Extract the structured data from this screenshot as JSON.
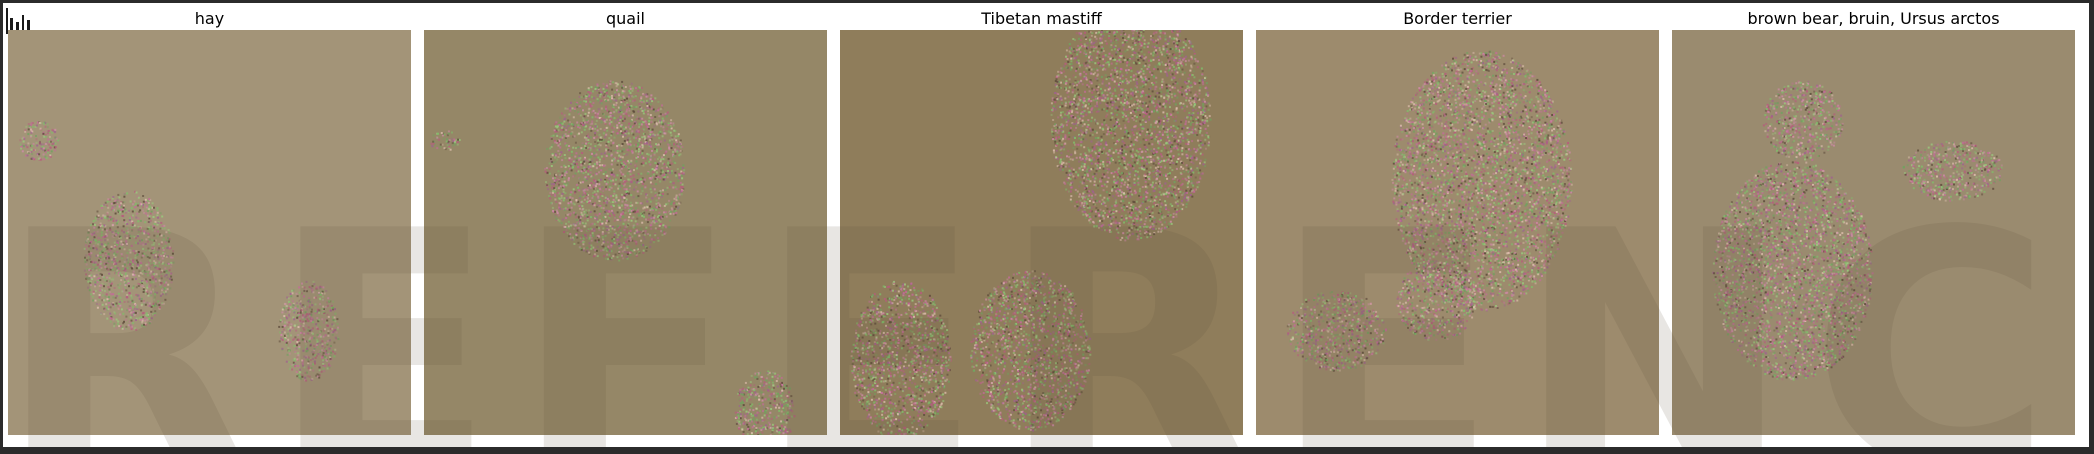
{
  "toolbar": {
    "icon": "bar-chart-icon"
  },
  "panels": [
    {
      "title": "hay",
      "bg": "#a39478"
    },
    {
      "title": "quail",
      "bg": "#958767"
    },
    {
      "title": "Tibetan mastiff",
      "bg": "#8f7d5b"
    },
    {
      "title": "Border terrier",
      "bg": "#9d8b6d"
    },
    {
      "title": "brown bear, bruin, Ursus arctos",
      "bg": "#9a8b6f"
    }
  ],
  "watermark": "REFERENCE"
}
